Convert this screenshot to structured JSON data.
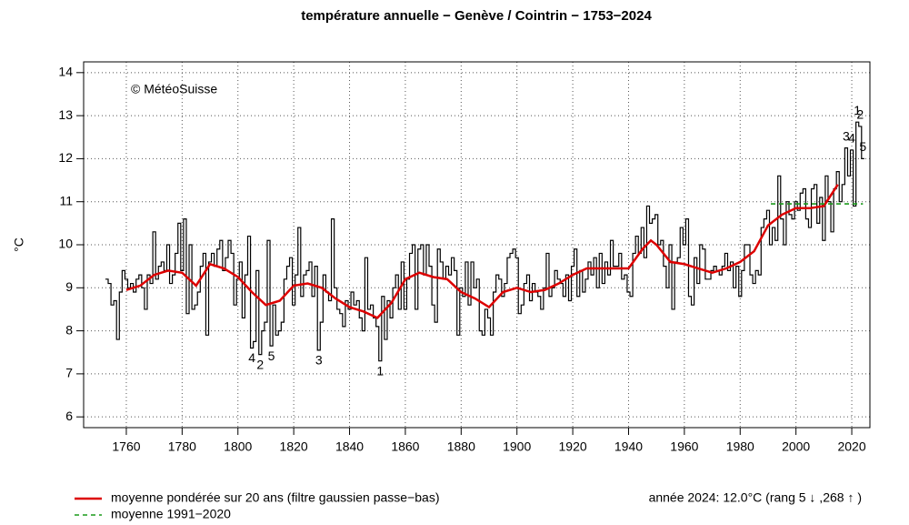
{
  "chart_data": {
    "type": "step",
    "title": "température annuelle − Genève / Cointrin − 1753−2024",
    "y_label": "°C",
    "copyright": "© MétéoSuisse",
    "info": "année 2024: 12.0°C (rang 5 ↓ ,268 ↑ )",
    "xlim": [
      1744.7,
      2026.5
    ],
    "ylim": [
      5.75,
      14.25
    ],
    "xticks": [
      1760,
      1780,
      1800,
      1820,
      1840,
      1860,
      1880,
      1900,
      1920,
      1940,
      1960,
      1980,
      2000,
      2020
    ],
    "yticks": [
      6,
      7,
      8,
      9,
      10,
      11,
      12,
      13,
      14
    ],
    "grid": true,
    "x": [
      1753,
      1754,
      1755,
      1756,
      1757,
      1758,
      1759,
      1760,
      1761,
      1762,
      1763,
      1764,
      1765,
      1766,
      1767,
      1768,
      1769,
      1770,
      1771,
      1772,
      1773,
      1774,
      1775,
      1776,
      1777,
      1778,
      1779,
      1780,
      1781,
      1782,
      1783,
      1784,
      1785,
      1786,
      1787,
      1788,
      1789,
      1790,
      1791,
      1792,
      1793,
      1794,
      1795,
      1796,
      1797,
      1798,
      1799,
      1800,
      1801,
      1802,
      1803,
      1804,
      1805,
      1806,
      1807,
      1808,
      1809,
      1810,
      1811,
      1812,
      1813,
      1814,
      1815,
      1816,
      1817,
      1818,
      1819,
      1820,
      1821,
      1822,
      1823,
      1824,
      1825,
      1826,
      1827,
      1828,
      1829,
      1830,
      1831,
      1832,
      1833,
      1834,
      1835,
      1836,
      1837,
      1838,
      1839,
      1840,
      1841,
      1842,
      1843,
      1844,
      1845,
      1846,
      1847,
      1848,
      1849,
      1850,
      1851,
      1852,
      1853,
      1854,
      1855,
      1856,
      1857,
      1858,
      1859,
      1860,
      1861,
      1862,
      1863,
      1864,
      1865,
      1866,
      1867,
      1868,
      1869,
      1870,
      1871,
      1872,
      1873,
      1874,
      1875,
      1876,
      1877,
      1878,
      1879,
      1880,
      1881,
      1882,
      1883,
      1884,
      1885,
      1886,
      1887,
      1888,
      1889,
      1890,
      1891,
      1892,
      1893,
      1894,
      1895,
      1896,
      1897,
      1898,
      1899,
      1900,
      1901,
      1902,
      1903,
      1904,
      1905,
      1906,
      1907,
      1908,
      1909,
      1910,
      1911,
      1912,
      1913,
      1914,
      1915,
      1916,
      1917,
      1918,
      1919,
      1920,
      1921,
      1922,
      1923,
      1924,
      1925,
      1926,
      1927,
      1928,
      1929,
      1930,
      1931,
      1932,
      1933,
      1934,
      1935,
      1936,
      1937,
      1938,
      1939,
      1940,
      1941,
      1942,
      1943,
      1944,
      1945,
      1946,
      1947,
      1948,
      1949,
      1950,
      1951,
      1952,
      1953,
      1954,
      1955,
      1956,
      1957,
      1958,
      1959,
      1960,
      1961,
      1962,
      1963,
      1964,
      1965,
      1966,
      1967,
      1968,
      1969,
      1970,
      1971,
      1972,
      1973,
      1974,
      1975,
      1976,
      1977,
      1978,
      1979,
      1980,
      1981,
      1982,
      1983,
      1984,
      1985,
      1986,
      1987,
      1988,
      1989,
      1990,
      1991,
      1992,
      1993,
      1994,
      1995,
      1996,
      1997,
      1998,
      1999,
      2000,
      2001,
      2002,
      2003,
      2004,
      2005,
      2006,
      2007,
      2008,
      2009,
      2010,
      2011,
      2012,
      2013,
      2014,
      2015,
      2016,
      2017,
      2018,
      2019,
      2020,
      2021,
      2022,
      2023,
      2024
    ],
    "series": [
      {
        "color": "#000000",
        "values": [
          9.2,
          9.1,
          8.6,
          8.7,
          7.8,
          8.9,
          9.4,
          9.2,
          9.0,
          9.1,
          8.9,
          9.2,
          9.3,
          9.0,
          8.5,
          9.3,
          9.1,
          10.3,
          9.2,
          9.5,
          9.6,
          9.4,
          10.0,
          9.1,
          9.3,
          9.8,
          10.5,
          9.4,
          10.6,
          8.4,
          10.0,
          8.5,
          8.6,
          8.9,
          9.5,
          9.8,
          7.9,
          9.6,
          9.8,
          9.5,
          9.9,
          10.1,
          9.4,
          9.7,
          10.1,
          9.8,
          8.6,
          9.2,
          9.6,
          8.3,
          9.3,
          10.2,
          7.6,
          7.75,
          9.4,
          7.45,
          8.0,
          8.2,
          10.1,
          7.65,
          8.6,
          7.9,
          8.0,
          8.2,
          9.2,
          9.5,
          9.7,
          8.6,
          9.3,
          10.4,
          8.8,
          9.3,
          9.4,
          9.6,
          8.8,
          9.5,
          7.55,
          8.2,
          9.3,
          8.9,
          8.7,
          10.6,
          9.0,
          8.5,
          8.4,
          8.1,
          8.7,
          8.5,
          8.9,
          8.6,
          8.7,
          8.3,
          8.0,
          9.7,
          8.5,
          8.6,
          8.3,
          8.1,
          7.3,
          8.8,
          7.8,
          8.7,
          8.3,
          9.0,
          9.3,
          8.5,
          9.6,
          8.5,
          9.2,
          9.8,
          10.0,
          8.5,
          9.9,
          10.0,
          9.3,
          10.0,
          9.5,
          8.6,
          8.2,
          9.9,
          9.6,
          9.2,
          9.5,
          9.3,
          9.7,
          9.4,
          7.9,
          9.0,
          8.8,
          9.6,
          8.6,
          9.6,
          9.0,
          9.2,
          8.0,
          7.9,
          8.5,
          8.3,
          7.9,
          8.9,
          9.3,
          9.2,
          8.8,
          9.1,
          9.7,
          9.8,
          9.9,
          9.7,
          8.4,
          8.6,
          9.1,
          9.3,
          8.7,
          9.1,
          8.9,
          8.8,
          8.5,
          9.0,
          9.8,
          8.8,
          9.0,
          9.4,
          9.2,
          9.1,
          8.8,
          9.3,
          8.7,
          9.5,
          9.9,
          8.8,
          9.4,
          8.9,
          9.2,
          9.6,
          9.3,
          9.7,
          9.0,
          9.8,
          9.1,
          9.6,
          9.3,
          10.1,
          9.5,
          9.5,
          9.8,
          9.2,
          9.3,
          8.9,
          8.8,
          9.8,
          10.2,
          9.8,
          10.4,
          9.7,
          10.9,
          10.5,
          10.6,
          10.7,
          10.0,
          10.1,
          9.5,
          9.0,
          10.0,
          8.5,
          9.6,
          9.7,
          10.4,
          10.0,
          10.6,
          8.8,
          8.6,
          9.7,
          9.1,
          10.0,
          9.9,
          9.2,
          9.2,
          9.4,
          9.5,
          9.4,
          9.3,
          9.5,
          9.8,
          9.4,
          9.6,
          9.0,
          9.5,
          8.8,
          9.4,
          10.0,
          10.0,
          9.3,
          9.1,
          9.4,
          9.3,
          10.4,
          10.6,
          10.8,
          10.0,
          10.4,
          10.1,
          11.6,
          10.6,
          10.0,
          11.0,
          10.7,
          10.6,
          11.0,
          10.8,
          11.2,
          11.3,
          10.6,
          10.4,
          11.3,
          11.4,
          10.5,
          11.1,
          10.1,
          11.6,
          11.0,
          10.3,
          11.3,
          11.7,
          11.0,
          11.4,
          12.25,
          11.6,
          12.2,
          10.9,
          12.85,
          12.75,
          12.0
        ]
      },
      {
        "name": "moyenne pondérée sur 20 ans (filtre gaussien passe−bas)",
        "color": "#dd0000",
        "x": [
          1760,
          1765,
          1770,
          1775,
          1780,
          1785,
          1790,
          1795,
          1800,
          1805,
          1810,
          1815,
          1820,
          1825,
          1830,
          1835,
          1840,
          1845,
          1850,
          1855,
          1860,
          1865,
          1870,
          1875,
          1880,
          1885,
          1890,
          1895,
          1900,
          1905,
          1910,
          1915,
          1920,
          1925,
          1930,
          1935,
          1940,
          1945,
          1948,
          1950,
          1955,
          1960,
          1965,
          1970,
          1975,
          1980,
          1985,
          1990,
          1995,
          2000,
          2005,
          2010,
          2015
        ],
        "values": [
          8.95,
          9.05,
          9.3,
          9.4,
          9.35,
          9.05,
          9.55,
          9.45,
          9.25,
          8.9,
          8.6,
          8.7,
          9.05,
          9.1,
          9.0,
          8.75,
          8.55,
          8.45,
          8.3,
          8.65,
          9.2,
          9.35,
          9.25,
          9.2,
          8.9,
          8.75,
          8.55,
          8.9,
          9.0,
          8.9,
          8.95,
          9.1,
          9.3,
          9.45,
          9.45,
          9.45,
          9.45,
          9.9,
          10.1,
          10.0,
          9.6,
          9.55,
          9.45,
          9.35,
          9.45,
          9.6,
          9.85,
          10.45,
          10.7,
          10.85,
          10.85,
          10.9,
          11.4
        ]
      },
      {
        "name": "moyenne 1991−2020",
        "color": "#1a9a1a",
        "x": [
          1991,
          2024
        ],
        "values": [
          10.95,
          10.95
        ]
      }
    ],
    "cold_ranks": {
      "x": [
        1851,
        1808,
        1829,
        1805,
        1812
      ],
      "labels": [
        1,
        2,
        3,
        4,
        5
      ]
    },
    "warm_ranks": {
      "x": [
        2022,
        2023,
        2018,
        2020,
        2024
      ],
      "labels": [
        1,
        2,
        3,
        4,
        5
      ]
    }
  }
}
